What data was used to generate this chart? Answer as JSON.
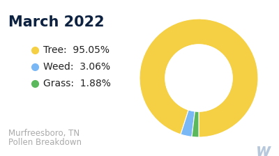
{
  "title": "March 2022",
  "subtitle_line1": "Murfreesboro, TN",
  "subtitle_line2": "Pollen Breakdown",
  "slices": [
    {
      "label": "Tree",
      "value": 95.05,
      "color": "#F5D045"
    },
    {
      "label": "Weed",
      "value": 3.06,
      "color": "#7AB8F5"
    },
    {
      "label": "Grass",
      "value": 1.88,
      "color": "#5CB85C"
    }
  ],
  "background_color": "#ffffff",
  "title_color": "#0d2240",
  "title_fontsize": 15,
  "legend_fontsize": 10,
  "subtitle_color": "#aaaaaa",
  "subtitle_fontsize": 8.5,
  "start_angle": 90,
  "watermark_color": "#b8c8dc"
}
